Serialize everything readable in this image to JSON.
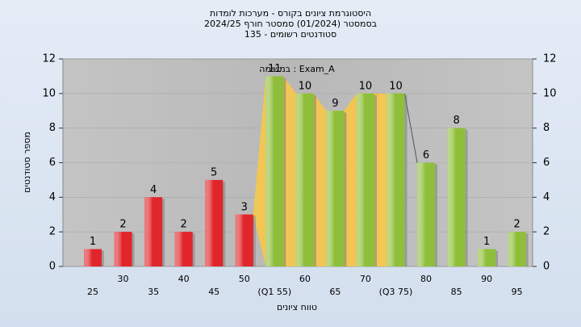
{
  "chart_data": {
    "type": "bar",
    "title": [
      "היסטוגרמת ציונים בקורס - מערכות לומדות",
      "בסמסטר  (01/2024)  סמסטר חורף 2024/25",
      "סטודנטים רשומים - 135"
    ],
    "annotation": "במשימה : Exam_A",
    "x_label": "טווח ציונים",
    "y_label": "מספר סטודנטים",
    "categories": [
      "25",
      "30",
      "35",
      "40",
      "45",
      "50",
      "(Q1 55)",
      "60",
      "65",
      "70",
      "(Q3 75)",
      "80",
      "85",
      "90",
      "95"
    ],
    "values": [
      1,
      2,
      4,
      2,
      5,
      3,
      11,
      10,
      9,
      10,
      10,
      6,
      8,
      1,
      2
    ],
    "colors": [
      "#e0262b",
      "#e0262b",
      "#e0262b",
      "#e0262b",
      "#e0262b",
      "#e0262b",
      "#8fbf3a",
      "#8fbf3a",
      "#8fbf3a",
      "#8fbf3a",
      "#8fbf3a",
      "#8fbf3a",
      "#8fbf3a",
      "#8fbf3a",
      "#8fbf3a"
    ],
    "iqr_color": "#f7c84a",
    "ylim": [
      0,
      12
    ],
    "yticks": [
      0,
      2,
      4,
      6,
      8,
      10,
      12
    ],
    "y2lim": [
      0,
      12
    ],
    "y2ticks": [
      0,
      2,
      4,
      6,
      8,
      10,
      12
    ],
    "grid": true
  }
}
